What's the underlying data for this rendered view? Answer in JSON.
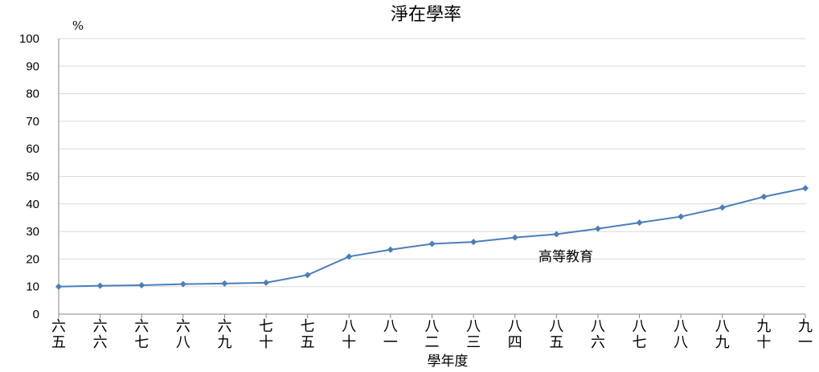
{
  "chart_data": {
    "type": "line",
    "title": "淨在學率",
    "unit_label": "%",
    "xlabel": "學年度",
    "ylabel": "",
    "ylim": [
      0,
      100
    ],
    "yticks": [
      0,
      10,
      20,
      30,
      40,
      50,
      60,
      70,
      80,
      90,
      100
    ],
    "grid": true,
    "categories": [
      [
        "六",
        "五"
      ],
      [
        "六",
        "六"
      ],
      [
        "六",
        "七"
      ],
      [
        "六",
        "八"
      ],
      [
        "六",
        "九"
      ],
      [
        "七",
        "十"
      ],
      [
        "七",
        "五"
      ],
      [
        "八",
        "十"
      ],
      [
        "八",
        "一"
      ],
      [
        "八",
        "二"
      ],
      [
        "八",
        "三"
      ],
      [
        "八",
        "四"
      ],
      [
        "八",
        "五"
      ],
      [
        "八",
        "六"
      ],
      [
        "八",
        "七"
      ],
      [
        "八",
        "八"
      ],
      [
        "八",
        "九"
      ],
      [
        "九",
        "十"
      ],
      [
        "九",
        "一"
      ]
    ],
    "series": [
      {
        "name": "高等教育",
        "color": "#4a7ebb",
        "values": [
          10.0,
          10.3,
          10.5,
          10.9,
          11.1,
          11.4,
          14.2,
          20.9,
          23.4,
          25.5,
          26.2,
          27.8,
          29.0,
          31.0,
          33.2,
          35.4,
          38.7,
          42.6,
          45.7
        ]
      }
    ]
  }
}
